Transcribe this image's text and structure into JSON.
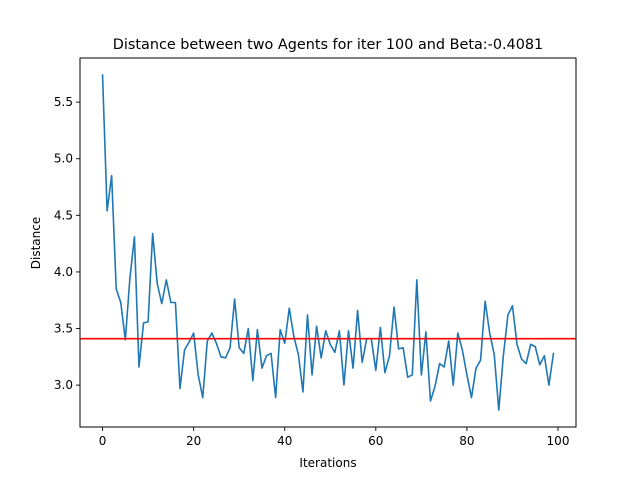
{
  "chart_data": {
    "type": "line",
    "title": "Distance between two Agents for iter 100 and Beta:-0.4081",
    "xlabel": "Iterations",
    "ylabel": "Distance",
    "xlim": [
      -4.95,
      103.95
    ],
    "ylim": [
      2.63,
      5.89
    ],
    "xticks": [
      0,
      20,
      40,
      60,
      80,
      100
    ],
    "xtick_labels": [
      "0",
      "20",
      "40",
      "60",
      "80",
      "100"
    ],
    "yticks": [
      3.0,
      3.5,
      4.0,
      4.5,
      5.0,
      5.5
    ],
    "ytick_labels": [
      "3.0",
      "3.5",
      "4.0",
      "4.5",
      "5.0",
      "5.5"
    ],
    "grid": false,
    "series": [
      {
        "color": "#1f77b4",
        "x": [
          0,
          1,
          2,
          3,
          4,
          5,
          6,
          7,
          8,
          9,
          10,
          11,
          12,
          13,
          14,
          15,
          16,
          17,
          18,
          19,
          20,
          21,
          22,
          23,
          24,
          25,
          26,
          27,
          28,
          29,
          30,
          31,
          32,
          33,
          34,
          35,
          36,
          37,
          38,
          39,
          40,
          41,
          42,
          43,
          44,
          45,
          46,
          47,
          48,
          49,
          50,
          51,
          52,
          53,
          54,
          55,
          56,
          57,
          58,
          59,
          60,
          61,
          62,
          63,
          64,
          65,
          66,
          67,
          68,
          69,
          70,
          71,
          72,
          73,
          74,
          75,
          76,
          77,
          78,
          79,
          80,
          81,
          82,
          83,
          84,
          85,
          86,
          87,
          88,
          89,
          90,
          91,
          92,
          93,
          94,
          95,
          96,
          97,
          98,
          99
        ],
        "y": [
          5.74,
          4.54,
          4.85,
          3.85,
          3.73,
          3.4,
          3.94,
          4.31,
          3.16,
          3.55,
          3.56,
          4.34,
          3.9,
          3.72,
          3.93,
          3.73,
          3.73,
          2.97,
          3.31,
          3.38,
          3.46,
          3.09,
          2.89,
          3.39,
          3.46,
          3.37,
          3.25,
          3.24,
          3.33,
          3.76,
          3.33,
          3.28,
          3.5,
          3.04,
          3.49,
          3.15,
          3.26,
          3.28,
          2.89,
          3.49,
          3.37,
          3.68,
          3.43,
          3.27,
          2.94,
          3.62,
          3.09,
          3.52,
          3.24,
          3.48,
          3.36,
          3.29,
          3.48,
          3.0,
          3.48,
          3.15,
          3.66,
          3.2,
          3.41,
          3.41,
          3.13,
          3.51,
          3.11,
          3.26,
          3.69,
          3.32,
          3.33,
          3.07,
          3.09,
          3.93,
          3.09,
          3.47,
          2.86,
          2.99,
          3.19,
          3.16,
          3.39,
          3.0,
          3.46,
          3.31,
          3.09,
          2.89,
          3.15,
          3.22,
          3.74,
          3.46,
          3.27,
          2.78,
          3.26,
          3.62,
          3.7,
          3.36,
          3.23,
          3.19,
          3.36,
          3.34,
          3.18,
          3.26,
          3.0,
          3.28
        ]
      }
    ],
    "reference_line": {
      "orientation": "horizontal",
      "y": 3.41,
      "color": "#ff0000"
    }
  }
}
